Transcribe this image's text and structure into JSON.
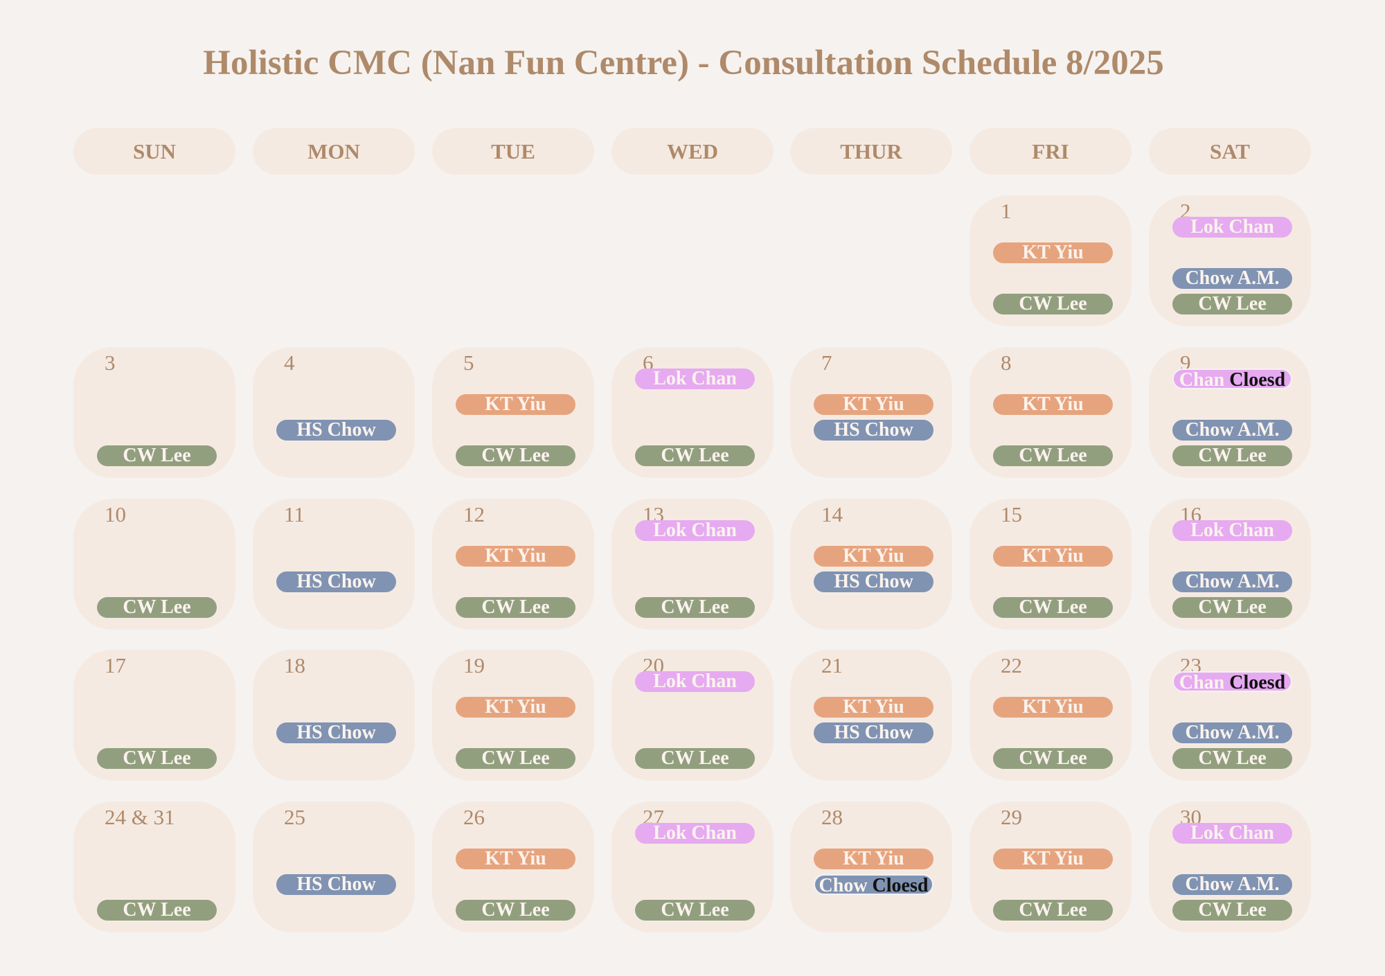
{
  "title": "Holistic CMC (Nan Fun Centre) - Consultation Schedule 8/2025",
  "days_of_week": [
    "SUN",
    "MON",
    "TUE",
    "WED",
    "THUR",
    "FRI",
    "SAT"
  ],
  "colors": {
    "KT Yiu": "#e6a47e",
    "HS Chow": "#8093b2",
    "CW Lee": "#929f7f",
    "Lok Chan": "#e6aaf0",
    "Chow A.M.": "#8093b2"
  },
  "weeks": [
    [
      null,
      null,
      null,
      null,
      null,
      {
        "day": "1",
        "entries": [
          {
            "text": "KT Yiu",
            "kind": "kt",
            "slot": 2
          },
          {
            "text": "CW Lee",
            "kind": "cw",
            "slot": 4
          }
        ]
      },
      {
        "day": "2",
        "entries": [
          {
            "text": "Lok Chan",
            "kind": "lok",
            "slot": 1
          },
          {
            "text": "Chow A.M.",
            "kind": "am",
            "slot": 3
          },
          {
            "text": "CW Lee",
            "kind": "cw",
            "slot": 4
          }
        ]
      }
    ],
    [
      {
        "day": "3",
        "entries": [
          {
            "text": "CW Lee",
            "kind": "cw",
            "slot": 4
          }
        ]
      },
      {
        "day": "4",
        "entries": [
          {
            "text": "HS Chow",
            "kind": "hs",
            "slot": 3
          }
        ]
      },
      {
        "day": "5",
        "entries": [
          {
            "text": "KT Yiu",
            "kind": "kt",
            "slot": 2
          },
          {
            "text": "CW Lee",
            "kind": "cw",
            "slot": 4
          }
        ]
      },
      {
        "day": "6",
        "entries": [
          {
            "text": "Lok Chan",
            "kind": "lok",
            "slot": 1
          },
          {
            "text": "CW Lee",
            "kind": "cw",
            "slot": 4
          }
        ]
      },
      {
        "day": "7",
        "entries": [
          {
            "text": "KT Yiu",
            "kind": "kt",
            "slot": 2
          },
          {
            "text": "HS Chow",
            "kind": "hs",
            "slot": 3
          }
        ]
      },
      {
        "day": "8",
        "entries": [
          {
            "text": "KT Yiu",
            "kind": "kt",
            "slot": 2
          },
          {
            "text": "CW Lee",
            "kind": "cw",
            "slot": 4
          }
        ]
      },
      {
        "day": "9",
        "entries": [
          {
            "text": "Chan",
            "closed": "Cloesd",
            "kind": "closed-pink",
            "slot": 1
          },
          {
            "text": "Chow A.M.",
            "kind": "am",
            "slot": 3
          },
          {
            "text": "CW Lee",
            "kind": "cw",
            "slot": 4
          }
        ]
      }
    ],
    [
      {
        "day": "10",
        "entries": [
          {
            "text": "CW Lee",
            "kind": "cw",
            "slot": 4
          }
        ]
      },
      {
        "day": "11",
        "entries": [
          {
            "text": "HS Chow",
            "kind": "hs",
            "slot": 3
          }
        ]
      },
      {
        "day": "12",
        "entries": [
          {
            "text": "KT Yiu",
            "kind": "kt",
            "slot": 2
          },
          {
            "text": "CW Lee",
            "kind": "cw",
            "slot": 4
          }
        ]
      },
      {
        "day": "13",
        "entries": [
          {
            "text": "Lok Chan",
            "kind": "lok",
            "slot": 1
          },
          {
            "text": "CW Lee",
            "kind": "cw",
            "slot": 4
          }
        ]
      },
      {
        "day": "14",
        "entries": [
          {
            "text": "KT Yiu",
            "kind": "kt",
            "slot": 2
          },
          {
            "text": "HS Chow",
            "kind": "hs",
            "slot": 3
          }
        ]
      },
      {
        "day": "15",
        "entries": [
          {
            "text": "KT Yiu",
            "kind": "kt",
            "slot": 2
          },
          {
            "text": "CW Lee",
            "kind": "cw",
            "slot": 4
          }
        ]
      },
      {
        "day": "16",
        "entries": [
          {
            "text": "Lok Chan",
            "kind": "lok",
            "slot": 1
          },
          {
            "text": "Chow A.M.",
            "kind": "am",
            "slot": 3
          },
          {
            "text": "CW Lee",
            "kind": "cw",
            "slot": 4
          }
        ]
      }
    ],
    [
      {
        "day": "17",
        "entries": [
          {
            "text": "CW Lee",
            "kind": "cw",
            "slot": 4
          }
        ]
      },
      {
        "day": "18",
        "entries": [
          {
            "text": "HS Chow",
            "kind": "hs",
            "slot": 3
          }
        ]
      },
      {
        "day": "19",
        "entries": [
          {
            "text": "KT Yiu",
            "kind": "kt",
            "slot": 2
          },
          {
            "text": "CW Lee",
            "kind": "cw",
            "slot": 4
          }
        ]
      },
      {
        "day": "20",
        "entries": [
          {
            "text": "Lok Chan",
            "kind": "lok",
            "slot": 1
          },
          {
            "text": "CW Lee",
            "kind": "cw",
            "slot": 4
          }
        ]
      },
      {
        "day": "21",
        "entries": [
          {
            "text": "KT Yiu",
            "kind": "kt",
            "slot": 2
          },
          {
            "text": "HS Chow",
            "kind": "hs",
            "slot": 3
          }
        ]
      },
      {
        "day": "22",
        "entries": [
          {
            "text": "KT Yiu",
            "kind": "kt",
            "slot": 2
          },
          {
            "text": "CW Lee",
            "kind": "cw",
            "slot": 4
          }
        ]
      },
      {
        "day": "23",
        "entries": [
          {
            "text": "Chan",
            "closed": "Cloesd",
            "kind": "closed-pink",
            "slot": 1
          },
          {
            "text": "Chow A.M.",
            "kind": "am",
            "slot": 3
          },
          {
            "text": "CW Lee",
            "kind": "cw",
            "slot": 4
          }
        ]
      }
    ],
    [
      {
        "day": "24 & 31",
        "entries": [
          {
            "text": "CW Lee",
            "kind": "cw",
            "slot": 4
          }
        ]
      },
      {
        "day": "25",
        "entries": [
          {
            "text": "HS Chow",
            "kind": "hs",
            "slot": 3
          }
        ]
      },
      {
        "day": "26",
        "entries": [
          {
            "text": "KT Yiu",
            "kind": "kt",
            "slot": 2
          },
          {
            "text": "CW Lee",
            "kind": "cw",
            "slot": 4
          }
        ]
      },
      {
        "day": "27",
        "entries": [
          {
            "text": "Lok Chan",
            "kind": "lok",
            "slot": 1
          },
          {
            "text": "CW Lee",
            "kind": "cw",
            "slot": 4
          }
        ]
      },
      {
        "day": "28",
        "entries": [
          {
            "text": "KT Yiu",
            "kind": "kt",
            "slot": 2
          },
          {
            "text": "Chow",
            "closed": "Cloesd",
            "kind": "closed-blue",
            "slot": 3
          }
        ]
      },
      {
        "day": "29",
        "entries": [
          {
            "text": "KT Yiu",
            "kind": "kt",
            "slot": 2
          },
          {
            "text": "CW Lee",
            "kind": "cw",
            "slot": 4
          }
        ]
      },
      {
        "day": "30",
        "entries": [
          {
            "text": "Lok Chan",
            "kind": "lok",
            "slot": 1
          },
          {
            "text": "Chow A.M.",
            "kind": "am",
            "slot": 3
          },
          {
            "text": "CW Lee",
            "kind": "cw",
            "slot": 4
          }
        ]
      }
    ]
  ]
}
